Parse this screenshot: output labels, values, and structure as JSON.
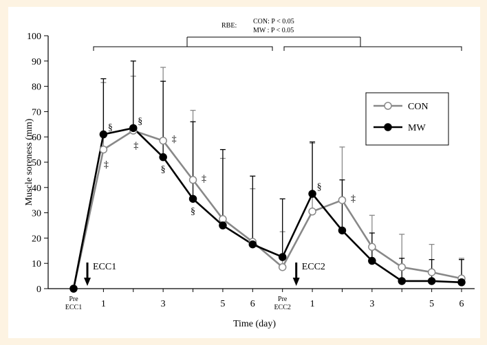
{
  "chart_data": {
    "type": "line",
    "xlabel": "Time (day)",
    "ylabel": "Muscle soreness (mm)",
    "ylim": [
      0,
      100
    ],
    "yticks": [
      "0",
      "10",
      "20",
      "30",
      "40",
      "50",
      "60",
      "70",
      "80",
      "90",
      "100"
    ],
    "categories": [
      "Pre ECC1",
      "1",
      "2",
      "3",
      "4",
      "5",
      "6",
      "Pre ECC2",
      "1",
      "2",
      "3",
      "4",
      "5",
      "6"
    ],
    "xtick_labels": [
      "Pre\nECC1",
      "1",
      "",
      "3",
      "",
      "5",
      "6",
      "Pre\nECC2",
      "1",
      "",
      "3",
      "",
      "5",
      "6"
    ],
    "series": [
      {
        "name": "CON",
        "color": "#888888",
        "marker": "open-circle",
        "values": [
          0,
          55,
          62.5,
          58.5,
          43,
          27.5,
          18.5,
          8.5,
          30.5,
          35,
          16.5,
          8.5,
          6.5,
          4
        ],
        "error_upper": [
          0,
          81.5,
          84,
          87.5,
          70.5,
          51.5,
          39.5,
          22.5,
          57.5,
          56,
          29,
          21.5,
          17.5,
          12
        ]
      },
      {
        "name": "MW",
        "color": "#000000",
        "marker": "filled-circle",
        "values": [
          0,
          61,
          63.5,
          52,
          35.5,
          25,
          17.5,
          12.5,
          37.5,
          23,
          11,
          3,
          3,
          2.5
        ],
        "error_upper": [
          0,
          83,
          90,
          82,
          66,
          55,
          44.5,
          35.5,
          58,
          43,
          22,
          12,
          11.5,
          11.5
        ]
      }
    ],
    "annotations": {
      "con_markers": [
        {
          "index": 1,
          "symbol": "‡"
        },
        {
          "index": 2,
          "symbol": "‡"
        },
        {
          "index": 3,
          "symbol": "‡"
        },
        {
          "index": 4,
          "symbol": "‡"
        },
        {
          "index": 9,
          "symbol": "‡"
        }
      ],
      "mw_markers": [
        {
          "index": 1,
          "symbol": "§"
        },
        {
          "index": 2,
          "symbol": "§"
        },
        {
          "index": 3,
          "symbol": "§"
        },
        {
          "index": 4,
          "symbol": "§"
        },
        {
          "index": 8,
          "symbol": "§"
        }
      ],
      "ecc1_label": "ECC1",
      "ecc2_label": "ECC2",
      "rbe_label": "RBE:",
      "rbe_con": "CON: P < 0.05",
      "rbe_mw": "MW : P < 0.05"
    },
    "legend": {
      "position": "right-upper",
      "entries": [
        "CON",
        "MW"
      ]
    }
  }
}
